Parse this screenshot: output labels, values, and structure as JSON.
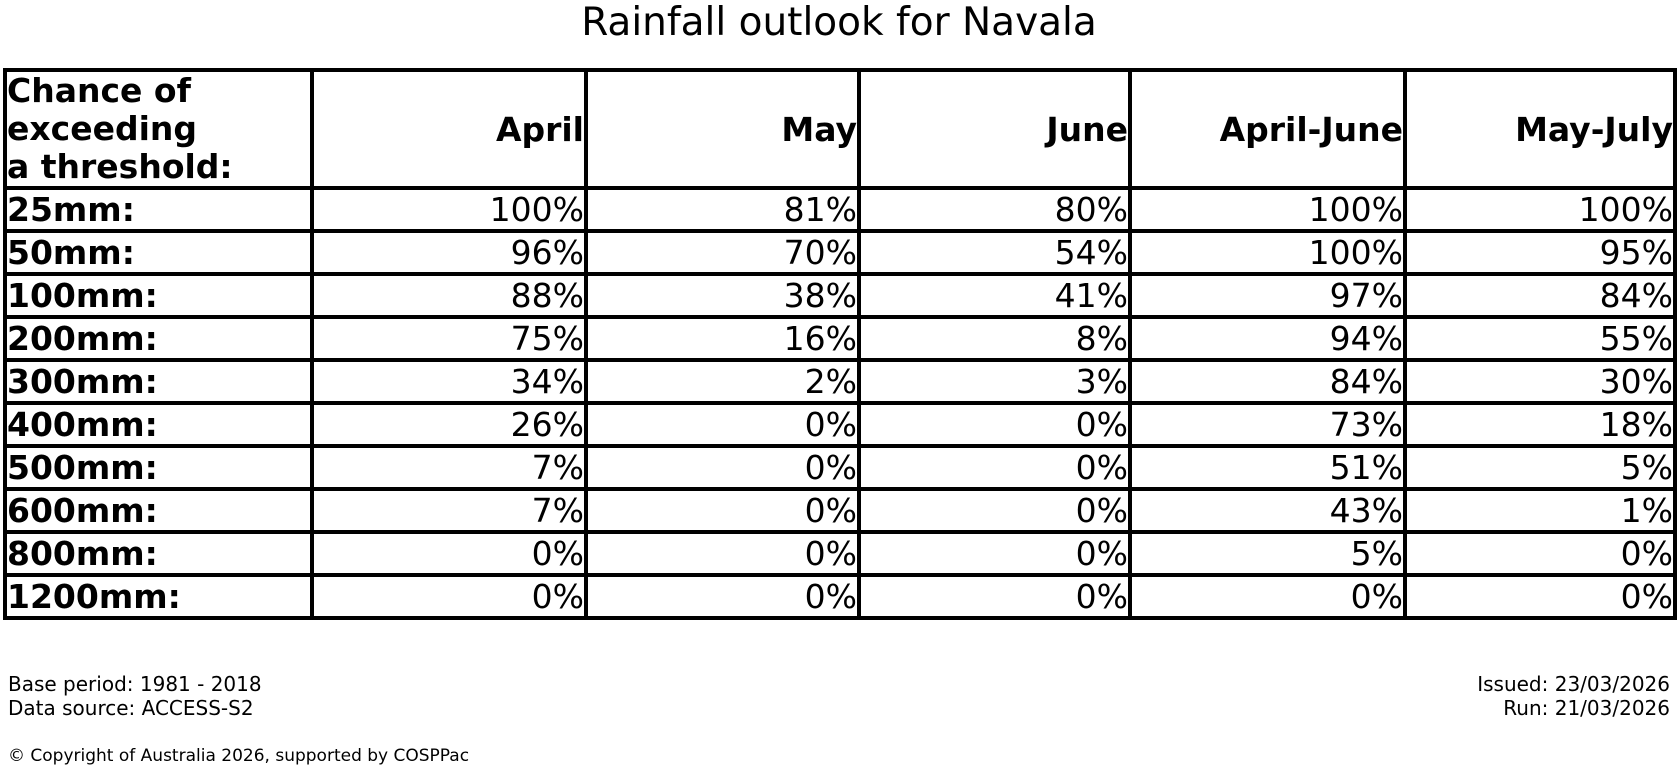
{
  "title": "Rainfall outlook for Navala",
  "table": {
    "corner_lines": [
      "Chance of",
      "exceeding",
      "a threshold:"
    ],
    "columns": [
      "April",
      "May",
      "June",
      "April-June",
      "May-July"
    ],
    "rows": [
      {
        "threshold": "25mm:",
        "values": [
          "100%",
          "81%",
          "80%",
          "100%",
          "100%"
        ]
      },
      {
        "threshold": "50mm:",
        "values": [
          "96%",
          "70%",
          "54%",
          "100%",
          "95%"
        ]
      },
      {
        "threshold": "100mm:",
        "values": [
          "88%",
          "38%",
          "41%",
          "97%",
          "84%"
        ]
      },
      {
        "threshold": "200mm:",
        "values": [
          "75%",
          "16%",
          "8%",
          "94%",
          "55%"
        ]
      },
      {
        "threshold": "300mm:",
        "values": [
          "34%",
          "2%",
          "3%",
          "84%",
          "30%"
        ]
      },
      {
        "threshold": "400mm:",
        "values": [
          "26%",
          "0%",
          "0%",
          "73%",
          "18%"
        ]
      },
      {
        "threshold": "500mm:",
        "values": [
          "7%",
          "0%",
          "0%",
          "51%",
          "5%"
        ]
      },
      {
        "threshold": "600mm:",
        "values": [
          "7%",
          "0%",
          "0%",
          "43%",
          "1%"
        ]
      },
      {
        "threshold": "800mm:",
        "values": [
          "0%",
          "0%",
          "0%",
          "5%",
          "0%"
        ]
      },
      {
        "threshold": "1200mm:",
        "values": [
          "0%",
          "0%",
          "0%",
          "0%",
          "0%"
        ]
      }
    ]
  },
  "footer": {
    "base_period": "Base period: 1981 - 2018",
    "data_source": "Data source: ACCESS-S2",
    "issued": "Issued: 23/03/2026",
    "run": "Run: 21/03/2026",
    "copyright": "© Copyright of Australia 2026, supported by COSPPac"
  },
  "colors": {
    "text": "#000000",
    "background": "#ffffff",
    "table_border": "#000000"
  },
  "chart_data": {
    "type": "table",
    "title": "Rainfall outlook for Navala",
    "row_header_label": "Chance of exceeding a threshold:",
    "columns": [
      "April",
      "May",
      "June",
      "April-June",
      "May-July"
    ],
    "thresholds_mm": [
      25,
      50,
      100,
      200,
      300,
      400,
      500,
      600,
      800,
      1200
    ],
    "values_percent": [
      [
        100,
        81,
        80,
        100,
        100
      ],
      [
        96,
        70,
        54,
        100,
        95
      ],
      [
        88,
        38,
        41,
        97,
        84
      ],
      [
        75,
        16,
        8,
        94,
        55
      ],
      [
        34,
        2,
        3,
        84,
        30
      ],
      [
        26,
        0,
        0,
        73,
        18
      ],
      [
        7,
        0,
        0,
        51,
        5
      ],
      [
        7,
        0,
        0,
        43,
        1
      ],
      [
        0,
        0,
        0,
        5,
        0
      ],
      [
        0,
        0,
        0,
        0,
        0
      ]
    ],
    "base_period": "1981 - 2018",
    "data_source": "ACCESS-S2",
    "issued_date": "23/03/2026",
    "run_date": "21/03/2026"
  }
}
